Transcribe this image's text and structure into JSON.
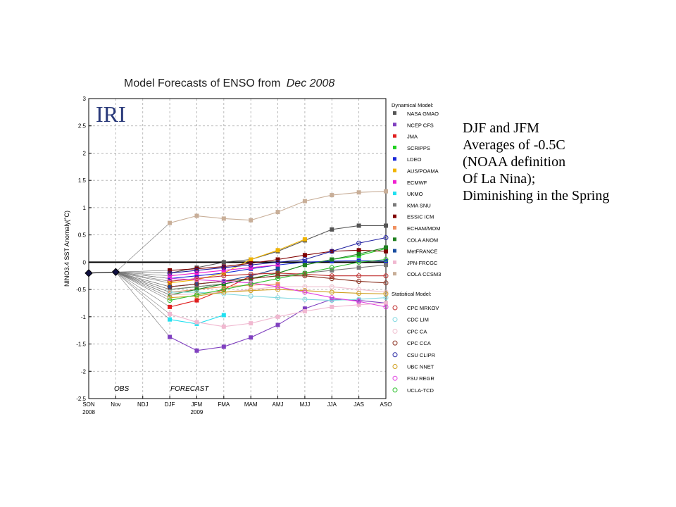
{
  "chart_data": {
    "type": "line",
    "title": "Model Forecasts of ENSO from",
    "title_date": "Dec 2008",
    "logo": "IRI",
    "ylabel": "NINO3.4 SST Anomaly(°C)",
    "ylim": [
      -2.5,
      3
    ],
    "yticks": [
      "-2.5",
      "-2",
      "-1.5",
      "-1",
      "-0.5",
      "0",
      "0.5",
      "1",
      "1.5",
      "2",
      "2.5",
      "3"
    ],
    "x_categories": [
      "SON",
      "Nov",
      "NDJ",
      "DJF",
      "JFM",
      "FMA",
      "MAM",
      "AMJ",
      "MJJ",
      "JJA",
      "JAS",
      "ASO"
    ],
    "year_labels": [
      "2008",
      "2009"
    ],
    "obs_label": "OBS",
    "forecast_label": "FORECAST",
    "observed": [
      -0.2,
      -0.18
    ],
    "legend_dynamical_heading": "Dynamical Model:",
    "legend_statistical_heading": "Statistical Model:",
    "series": [
      {
        "name": "NASA GMAO",
        "group": "dynamical",
        "color": "#555555",
        "values": [
          -0.2,
          -0.1,
          0.0,
          0.05,
          0.2,
          0.4,
          0.6,
          0.67,
          0.67
        ]
      },
      {
        "name": "NCEP CFS",
        "group": "dynamical",
        "color": "#8040c0",
        "values": [
          -1.37,
          -1.62,
          -1.55,
          -1.38,
          -1.15,
          -0.85,
          -0.68,
          -0.7,
          -0.75
        ]
      },
      {
        "name": "JMA",
        "group": "dynamical",
        "color": "#e02020",
        "values": [
          -0.82,
          -0.7,
          -0.5,
          -0.25,
          -0.12
        ]
      },
      {
        "name": "SCRIPPS",
        "group": "dynamical",
        "color": "#20d020",
        "values": [
          -0.5,
          -0.45,
          -0.4,
          -0.3,
          -0.2,
          -0.05,
          0.05,
          0.12,
          0.25
        ]
      },
      {
        "name": "LDEO",
        "group": "dynamical",
        "color": "#1a28d8",
        "values": [
          -0.3,
          -0.25,
          -0.2,
          -0.12,
          -0.05,
          0.0,
          0.02,
          0.03,
          0.02
        ]
      },
      {
        "name": "AUS/POAMA",
        "group": "dynamical",
        "color": "#f0b400",
        "values": [
          -0.38,
          -0.32,
          -0.2,
          0.05,
          0.22,
          0.42
        ]
      },
      {
        "name": "ECMWF",
        "group": "dynamical",
        "color": "#f020d0",
        "values": [
          -0.25,
          -0.2,
          -0.15,
          -0.1,
          -0.05
        ]
      },
      {
        "name": "UKMO",
        "group": "dynamical",
        "color": "#20e0f0",
        "values": [
          -1.05,
          -1.13,
          -0.97
        ]
      },
      {
        "name": "KMA SNU",
        "group": "dynamical",
        "color": "#7a7a7a",
        "values": [
          -0.5,
          -0.45,
          -0.4,
          -0.3,
          -0.25,
          -0.2,
          -0.15,
          -0.1,
          -0.05
        ]
      },
      {
        "name": "ESSIC ICM",
        "group": "dynamical",
        "color": "#800000",
        "values": [
          -0.15,
          -0.12,
          -0.08,
          -0.02,
          0.05,
          0.13,
          0.2,
          0.22,
          0.2
        ]
      },
      {
        "name": "ECHAM/MOM",
        "group": "dynamical",
        "color": "#f09060",
        "values": [
          -0.55,
          -0.5,
          -0.45,
          -0.42,
          -0.4
        ]
      },
      {
        "name": "COLA ANOM",
        "group": "dynamical",
        "color": "#208020",
        "values": [
          -0.6,
          -0.5,
          -0.4,
          -0.3,
          -0.2,
          -0.05,
          0.05,
          0.15,
          0.27
        ]
      },
      {
        "name": "MetFRANCE",
        "group": "dynamical",
        "color": "#1a4ea0",
        "values": [
          -0.45,
          -0.4,
          -0.35,
          -0.25,
          -0.12
        ]
      },
      {
        "name": "JPN-FRCGC",
        "group": "dynamical",
        "color": "#f0b8d0",
        "values": [
          -0.95,
          -1.1,
          -1.18,
          -1.12,
          -1.0,
          -0.9,
          -0.82,
          -0.78,
          -0.75
        ]
      },
      {
        "name": "COLA CCSM3",
        "group": "dynamical",
        "color": "#c8ae98",
        "values": [
          0.72,
          0.85,
          0.8,
          0.77,
          0.92,
          1.12,
          1.23,
          1.28,
          1.3
        ]
      },
      {
        "name": "CPC MRKOV",
        "group": "statistical",
        "color": "#c03030",
        "values": [
          -0.35,
          -0.3,
          -0.25,
          -0.22,
          -0.2,
          -0.22,
          -0.25,
          -0.25,
          -0.25
        ]
      },
      {
        "name": "CDC LIM",
        "group": "statistical",
        "color": "#80d8e0",
        "values": [
          -0.55,
          -0.55,
          -0.58,
          -0.62,
          -0.65,
          -0.68,
          -0.7,
          -0.68,
          -0.65
        ]
      },
      {
        "name": "CPC CA",
        "group": "statistical",
        "color": "#f0c0d0",
        "values": [
          -0.6,
          -0.58,
          -0.55,
          -0.5,
          -0.45,
          -0.45,
          -0.45,
          -0.5,
          -0.55
        ]
      },
      {
        "name": "CPC CCA",
        "group": "statistical",
        "color": "#8a3020",
        "values": [
          -0.45,
          -0.4,
          -0.35,
          -0.3,
          -0.25,
          -0.25,
          -0.3,
          -0.35,
          -0.38
        ]
      },
      {
        "name": "CSU CLIPR",
        "group": "statistical",
        "color": "#2020a0",
        "values": [
          -0.2,
          -0.15,
          -0.1,
          -0.05,
          0.0,
          0.05,
          0.2,
          0.35,
          0.45
        ]
      },
      {
        "name": "UBC NNET",
        "group": "statistical",
        "color": "#d0a020",
        "values": [
          -0.65,
          -0.62,
          -0.55,
          -0.52,
          -0.5,
          -0.52,
          -0.55,
          -0.57,
          -0.58
        ]
      },
      {
        "name": "FSU REGR",
        "group": "statistical",
        "color": "#e040e0",
        "values": [
          -0.3,
          -0.32,
          -0.35,
          -0.38,
          -0.45,
          -0.55,
          -0.65,
          -0.72,
          -0.82
        ]
      },
      {
        "name": "UCLA-TCD",
        "group": "statistical",
        "color": "#30c030",
        "values": [
          -0.7,
          -0.6,
          -0.5,
          -0.4,
          -0.3,
          -0.2,
          -0.1,
          0.0,
          0.05
        ]
      }
    ]
  },
  "note": {
    "lines": [
      "DJF and JFM",
      "Averages of -0.5C",
      "(NOAA definition",
      "Of La Nina);",
      "Diminishing in the Spring"
    ]
  }
}
